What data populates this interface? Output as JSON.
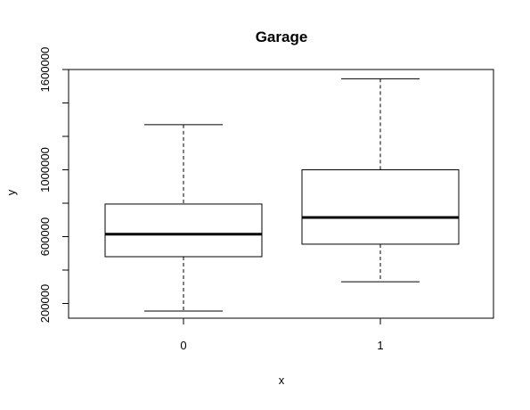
{
  "chart_data": {
    "type": "boxplot",
    "title": "Garage",
    "xlabel": "x",
    "ylabel": "y",
    "ylim": [
      100000,
      1650000
    ],
    "y_ticks": [
      200000,
      600000,
      1000000,
      1600000
    ],
    "y_tick_labels": [
      "200000",
      "600000",
      "1000000",
      "1600000"
    ],
    "y_minor_ticks": [
      400000,
      800000,
      1200000,
      1400000
    ],
    "categories": [
      "0",
      "1"
    ],
    "boxes": [
      {
        "category": "0",
        "whisker_low": 155000,
        "q1": 480000,
        "median": 615000,
        "q3": 795000,
        "whisker_high": 1270000
      },
      {
        "category": "1",
        "whisker_low": 330000,
        "q1": 555000,
        "median": 715000,
        "q3": 1000000,
        "whisker_high": 1545000
      }
    ]
  }
}
